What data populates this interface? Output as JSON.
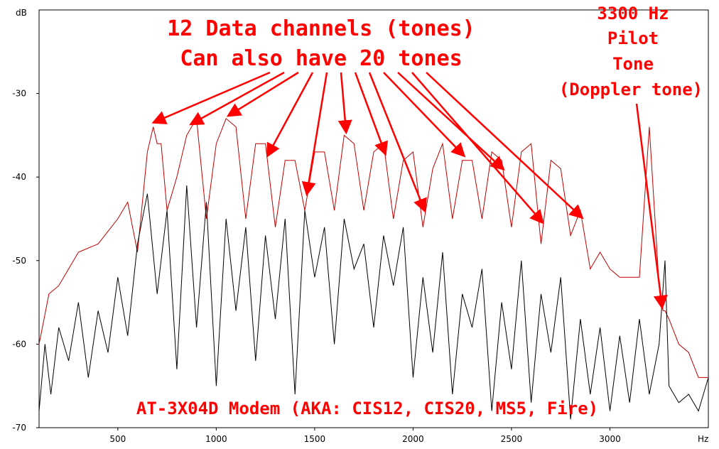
{
  "chart_data": {
    "type": "line",
    "y_unit_label": "dB",
    "x_unit_label": "Hz",
    "xlim": [
      100,
      3500
    ],
    "ylim": [
      -70,
      -20
    ],
    "x_ticks": [
      500,
      1000,
      1500,
      2000,
      2500,
      3000
    ],
    "y_ticks": [
      -30,
      -40,
      -50,
      -60,
      -70
    ],
    "grid": false,
    "series": [
      {
        "color": "#c00000",
        "x": [
          100,
          150,
          200,
          300,
          400,
          500,
          550,
          600,
          650,
          680,
          700,
          720,
          750,
          800,
          850,
          900,
          950,
          1000,
          1050,
          1100,
          1150,
          1200,
          1250,
          1300,
          1350,
          1400,
          1450,
          1500,
          1550,
          1600,
          1650,
          1700,
          1750,
          1800,
          1850,
          1900,
          1950,
          2000,
          2050,
          2100,
          2150,
          2200,
          2250,
          2300,
          2350,
          2400,
          2450,
          2500,
          2550,
          2600,
          2650,
          2700,
          2750,
          2800,
          2850,
          2900,
          2950,
          3000,
          3050,
          3100,
          3150,
          3200,
          3250,
          3270,
          3280,
          3300,
          3350,
          3400,
          3450,
          3500
        ],
        "values": [
          -60,
          -54,
          -53,
          -49,
          -48,
          -45,
          -43,
          -49,
          -37,
          -34,
          -36,
          -36,
          -44,
          -40,
          -35,
          -33,
          -45,
          -36,
          -33,
          -34,
          -45,
          -36,
          -36,
          -46,
          -38,
          -38,
          -44,
          -37,
          -37,
          -44,
          -35,
          -36,
          -44,
          -37,
          -36,
          -45,
          -38,
          -37,
          -46,
          -39,
          -36,
          -45,
          -38,
          -38,
          -45,
          -37,
          -38,
          -46,
          -37,
          -36,
          -48,
          -38,
          -39,
          -47,
          -44,
          -51,
          -49,
          -51,
          -52,
          -52,
          -52,
          -34,
          -53,
          -56,
          -56,
          -57,
          -60,
          -61,
          -64,
          -64
        ]
      },
      {
        "color": "#000000",
        "x": [
          100,
          130,
          160,
          200,
          250,
          300,
          350,
          400,
          450,
          500,
          550,
          600,
          650,
          700,
          750,
          800,
          850,
          900,
          950,
          1000,
          1050,
          1100,
          1150,
          1200,
          1250,
          1300,
          1350,
          1400,
          1450,
          1500,
          1550,
          1600,
          1650,
          1700,
          1750,
          1800,
          1850,
          1900,
          1950,
          2000,
          2050,
          2100,
          2150,
          2200,
          2250,
          2300,
          2350,
          2400,
          2450,
          2500,
          2550,
          2600,
          2650,
          2700,
          2750,
          2800,
          2850,
          2900,
          2950,
          3000,
          3050,
          3100,
          3150,
          3200,
          3250,
          3280,
          3300,
          3350,
          3400,
          3450,
          3500
        ],
        "values": [
          -68,
          -60,
          -66,
          -58,
          -62,
          -55,
          -64,
          -56,
          -61,
          -52,
          -59,
          -48,
          -42,
          -54,
          -44,
          -63,
          -41,
          -58,
          -43,
          -65,
          -45,
          -56,
          -46,
          -62,
          -47,
          -57,
          -45,
          -66,
          -44,
          -52,
          -46,
          -60,
          -45,
          -51,
          -48,
          -58,
          -47,
          -53,
          -46,
          -64,
          -52,
          -61,
          -49,
          -66,
          -54,
          -58,
          -51,
          -68,
          -55,
          -63,
          -50,
          -67,
          -54,
          -61,
          -52,
          -69,
          -57,
          -66,
          -58,
          -68,
          -59,
          -67,
          -57,
          -66,
          -60,
          -50,
          -65,
          -67,
          -66,
          -68,
          -64
        ]
      }
    ],
    "annotations": {
      "headline_1": "12 Data channels (tones)",
      "headline_2": "Can also have 20 tones",
      "pilot_1": "3300 Hz",
      "pilot_2": "Pilot",
      "pilot_3": "Tone",
      "pilot_4": "(Doppler tone)",
      "footer": "AT-3X04D Modem (AKA: CIS12, CIS20, MS5, Fire)"
    },
    "data_tone_freqs": [
      680,
      870,
      1060,
      1260,
      1460,
      1660,
      1860,
      2060,
      2260,
      2460,
      2660,
      2860
    ],
    "pilot_freq": 3280,
    "annotation_color": "#ff0000"
  }
}
